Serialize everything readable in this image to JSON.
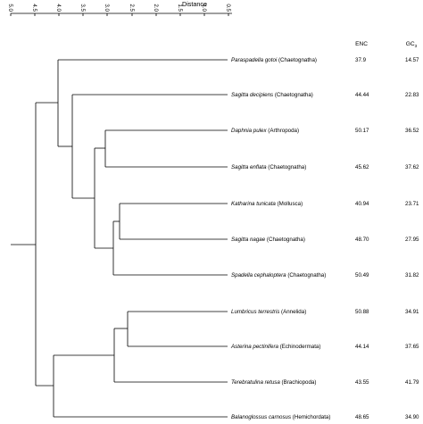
{
  "axis": {
    "title": "Distance",
    "ticks": [
      "5.0",
      "4.5",
      "4.0",
      "3.5",
      "3.0",
      "2.5",
      "2.0",
      "1.5",
      "1.0",
      "0.5"
    ]
  },
  "columns": {
    "enc": "ENC",
    "gc_main": "GC",
    "gc_sub": "3"
  },
  "taxa": [
    {
      "name": "Paraspadella gotoi",
      "group": "(Chaetognatha)",
      "enc": "37.9",
      "gc3": "14.57"
    },
    {
      "name": "Sagitta decipiens",
      "group": "(Chaetognatha)",
      "enc": "44.44",
      "gc3": "22.83"
    },
    {
      "name": "Daphnia pulex",
      "group": "(Arthropoda)",
      "enc": "50.17",
      "gc3": "36.52"
    },
    {
      "name": "Sagitta enflata",
      "group": "(Chaetognatha)",
      "enc": "45.62",
      "gc3": "37.62"
    },
    {
      "name": "Katharina tunicata",
      "group": "(Mollusca)",
      "enc": "40.94",
      "gc3": "23.71"
    },
    {
      "name": "Sagitta nagae",
      "group": "(Chaetognatha)",
      "enc": "48.70",
      "gc3": "27.95"
    },
    {
      "name": "Spadella cephaloptera",
      "group": "(Chaetognatha)",
      "enc": "50.49",
      "gc3": "31.82"
    },
    {
      "name": "Lumbricus terrestris",
      "group": "(Annelida)",
      "enc": "50.88",
      "gc3": "34.91"
    },
    {
      "name": "Asterina pectinifera",
      "group": "(Echinodermata)",
      "enc": "44.14",
      "gc3": "37.65"
    },
    {
      "name": "Terebratulina retusa",
      "group": "(Brachiopoda)",
      "enc": "43.55",
      "gc3": "41.79"
    },
    {
      "name": "Balanoglossus carnosus",
      "group": "(Hemichordata)",
      "enc": "48.65",
      "gc3": "34.90"
    }
  ]
}
